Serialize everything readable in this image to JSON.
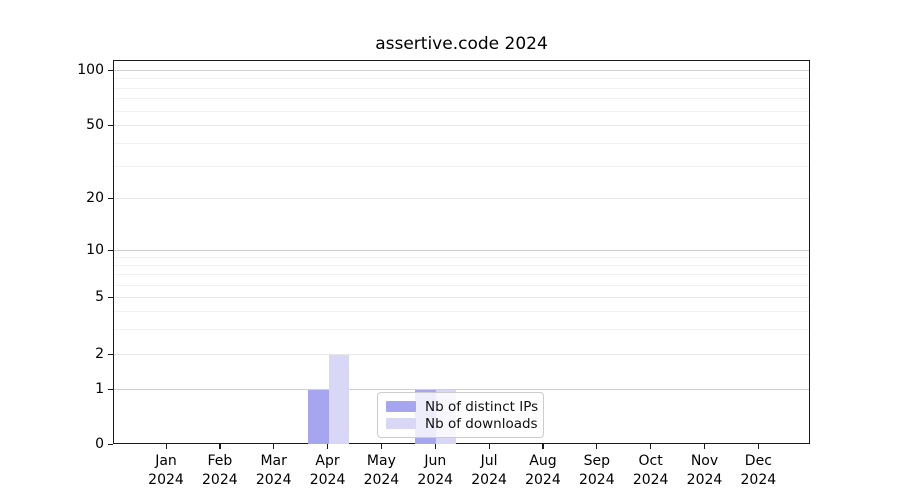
{
  "chart_data": {
    "type": "bar",
    "title": "assertive.code 2024",
    "x_months": [
      "Jan",
      "Feb",
      "Mar",
      "Apr",
      "May",
      "Jun",
      "Jul",
      "Aug",
      "Sep",
      "Oct",
      "Nov",
      "Dec"
    ],
    "x_year": "2024",
    "series": [
      {
        "name": "Nb of distinct IPs",
        "key": "distinct-ips",
        "color": "#a5a5f0",
        "values": [
          0,
          0,
          0,
          1,
          0,
          1,
          0,
          0,
          0,
          0,
          0,
          0
        ]
      },
      {
        "name": "Nb of downloads",
        "key": "downloads",
        "color": "#d8d8f6",
        "values": [
          0,
          0,
          0,
          2,
          0,
          1,
          0,
          0,
          0,
          0,
          0,
          0
        ]
      }
    ],
    "yscale": "symlog",
    "ylim": [
      0,
      115
    ],
    "y_tick_labels": [
      "0",
      "1",
      "2",
      "5",
      "10",
      "20",
      "50",
      "100"
    ],
    "y_minor_ticks": [
      3,
      4,
      6,
      7,
      8,
      9,
      30,
      40,
      60,
      70,
      80,
      90
    ],
    "grid": "horizontal",
    "legend_position": "lower-center-inside"
  }
}
